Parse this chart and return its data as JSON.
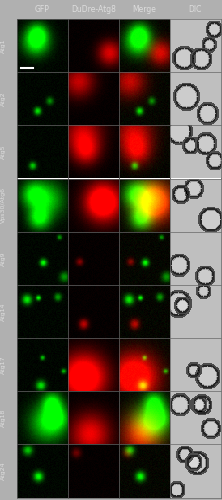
{
  "col_headers": [
    "GFP",
    "DuDre-Atg8",
    "Merge",
    "DIC"
  ],
  "row_labels": [
    "Atg1",
    "Atg2",
    "Atg5",
    "Vps30/Atg6",
    "Atg9",
    "Atg14",
    "Atg17",
    "Atg18",
    "Atg24"
  ],
  "n_rows": 9,
  "n_cols": 4,
  "fig_width": 2.22,
  "fig_height": 5.0,
  "bg_color": "#000000",
  "header_fontsize": 5.5,
  "rowlabel_fontsize": 4.5,
  "header_color": "#dddddd",
  "rowlabel_color": "#dddddd",
  "outer_bg": "#cccccc",
  "border_color": "#888888",
  "header_bg": "#ffffff"
}
